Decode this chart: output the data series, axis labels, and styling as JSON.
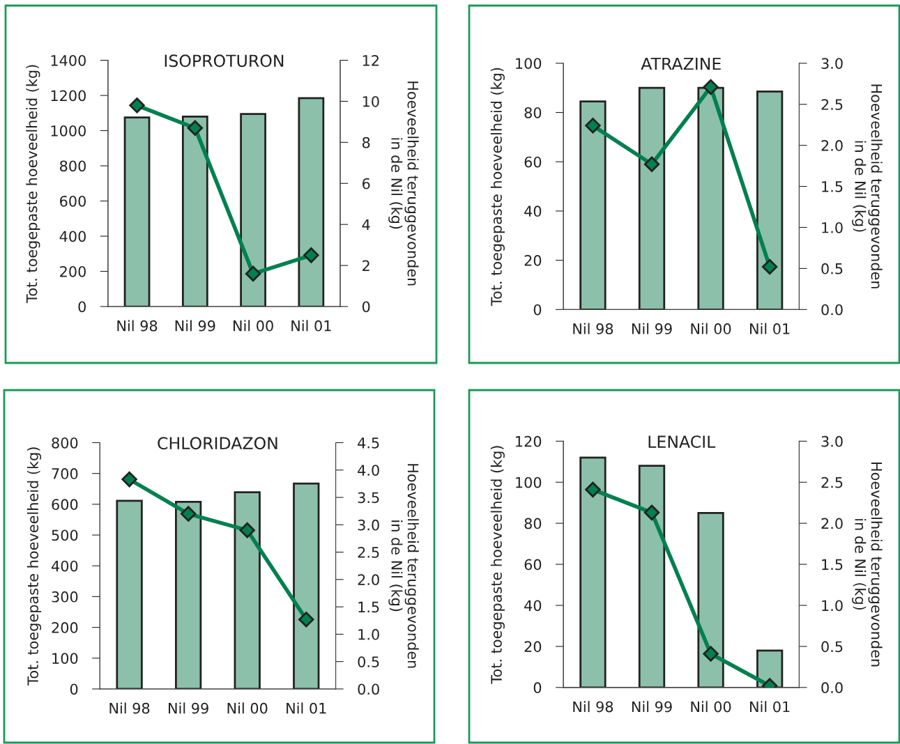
{
  "chart_data": [
    {
      "type": "bar",
      "title": "ISOPROTURON",
      "ylabel": "Tot. toegepaste hoeveelheid (kg)",
      "y2label": "Hoeveelheid teruggevonden\nin de Nil (kg)",
      "categories": [
        "Nil 98",
        "Nil 99",
        "Nil 00",
        "Nil 01"
      ],
      "ylim": [
        0,
        1400
      ],
      "yticks": [
        0,
        200,
        400,
        600,
        800,
        1000,
        1200,
        1400
      ],
      "y2lim": [
        0,
        12
      ],
      "y2ticks": [
        0,
        2,
        4,
        6,
        8,
        10,
        12
      ],
      "grid": false,
      "legend": false,
      "marker": "diamond",
      "series": [
        {
          "color": "#8cc0aa",
          "values": [
            1075,
            1080,
            1095,
            1185
          ]
        },
        {
          "type": "line",
          "axis": "y2",
          "color": "#008050",
          "values": [
            9.8,
            8.7,
            1.6,
            2.5
          ]
        }
      ]
    },
    {
      "type": "bar",
      "title": "ATRAZINE",
      "ylabel": "Tot. toegepaste hoeveelheid (kg)",
      "y2label": "Hoeveelheid teruggevonden\nin de Nil (kg)",
      "categories": [
        "Nil 98",
        "Nil 99",
        "Nil 00",
        "Nil 01"
      ],
      "ylim": [
        0,
        100
      ],
      "yticks": [
        0,
        20,
        40,
        60,
        80,
        100
      ],
      "y2lim": [
        0,
        3.0
      ],
      "y2ticks": [
        {
          "value": 0,
          "label": "0.0"
        },
        0.5,
        {
          "value": 1,
          "label": "1.0"
        },
        1.5,
        {
          "value": 2,
          "label": "2.0"
        },
        2.5,
        {
          "value": 3,
          "label": "3.0"
        }
      ],
      "grid": false,
      "legend": false,
      "marker": "diamond",
      "series": [
        {
          "color": "#8cc0aa",
          "values": [
            84.5,
            90,
            90,
            88.5
          ]
        },
        {
          "type": "line",
          "axis": "y2",
          "color": "#008050",
          "values": [
            2.24,
            1.77,
            2.71,
            0.52
          ]
        }
      ]
    },
    {
      "type": "bar",
      "title": "CHLORIDAZON",
      "ylabel": "Tot. toegepaste hoeveelheid (kg)",
      "y2label": "Hoeveelheid teruggevonden\nin de Nil (kg)",
      "categories": [
        "Nil 98",
        "Nil 99",
        "Nil 00",
        "Nil 01"
      ],
      "ylim": [
        0,
        800
      ],
      "yticks": [
        0,
        100,
        200,
        300,
        400,
        500,
        600,
        700,
        800
      ],
      "y2lim": [
        0,
        4.5
      ],
      "y2ticks": [
        {
          "value": 0,
          "label": "0.0"
        },
        0.5,
        {
          "value": 1,
          "label": "1.0"
        },
        1.5,
        {
          "value": 2,
          "label": "2.0"
        },
        2.5,
        {
          "value": 3,
          "label": "3.0"
        },
        3.5,
        {
          "value": 4,
          "label": "4.0"
        },
        4.5
      ],
      "grid": false,
      "legend": false,
      "marker": "diamond",
      "series": [
        {
          "color": "#8cc0aa",
          "values": [
            611,
            608,
            639,
            667
          ]
        },
        {
          "type": "line",
          "axis": "y2",
          "color": "#008050",
          "values": [
            3.83,
            3.2,
            2.9,
            1.27
          ]
        }
      ]
    },
    {
      "type": "bar",
      "title": "LENACIL",
      "ylabel": "Tot. toegepaste hoeveelheid (kg)",
      "y2label": "Hoeveelheid teruggevonden\nin de Nil (kg)",
      "categories": [
        "Nil 98",
        "Nil 99",
        "Nil 00",
        "Nil 01"
      ],
      "ylim": [
        0,
        120
      ],
      "yticks": [
        0,
        20,
        40,
        60,
        80,
        100,
        120
      ],
      "y2lim": [
        0,
        3.0
      ],
      "y2ticks": [
        {
          "value": 0,
          "label": "0.0"
        },
        0.5,
        {
          "value": 1,
          "label": "1.0"
        },
        1.5,
        {
          "value": 2,
          "label": "2.0"
        },
        2.5,
        {
          "value": 3,
          "label": "3.0"
        }
      ],
      "grid": false,
      "legend": false,
      "marker": "diamond",
      "series": [
        {
          "color": "#8cc0aa",
          "values": [
            112,
            108,
            85,
            18
          ]
        },
        {
          "type": "line",
          "axis": "y2",
          "color": "#008050",
          "values": [
            2.41,
            2.13,
            0.41,
            0.02
          ]
        }
      ]
    }
  ]
}
